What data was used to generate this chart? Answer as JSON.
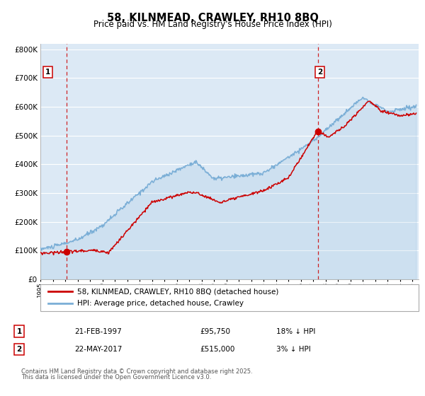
{
  "title": "58, KILNMEAD, CRAWLEY, RH10 8BQ",
  "subtitle": "Price paid vs. HM Land Registry's House Price Index (HPI)",
  "ylim": [
    0,
    820000
  ],
  "yticks": [
    0,
    100000,
    200000,
    300000,
    400000,
    500000,
    600000,
    700000,
    800000
  ],
  "plot_bg_color": "#dce9f5",
  "grid_color": "#ffffff",
  "sale1_x": 1997.13,
  "sale1_price": 95750,
  "sale2_x": 2017.39,
  "sale2_price": 515000,
  "vline_color": "#cc0000",
  "red_line_color": "#cc0000",
  "blue_line_color": "#7aaed6",
  "legend_label_red": "58, KILNMEAD, CRAWLEY, RH10 8BQ (detached house)",
  "legend_label_blue": "HPI: Average price, detached house, Crawley",
  "row1_num": "1",
  "row1_date": "21-FEB-1997",
  "row1_price": "£95,750",
  "row1_hpi": "18% ↓ HPI",
  "row2_num": "2",
  "row2_date": "22-MAY-2017",
  "row2_price": "£515,000",
  "row2_hpi": "3% ↓ HPI",
  "footnote1": "Contains HM Land Registry data © Crown copyright and database right 2025.",
  "footnote2": "This data is licensed under the Open Government Licence v3.0.",
  "xstart": 1995,
  "xend": 2025.5
}
